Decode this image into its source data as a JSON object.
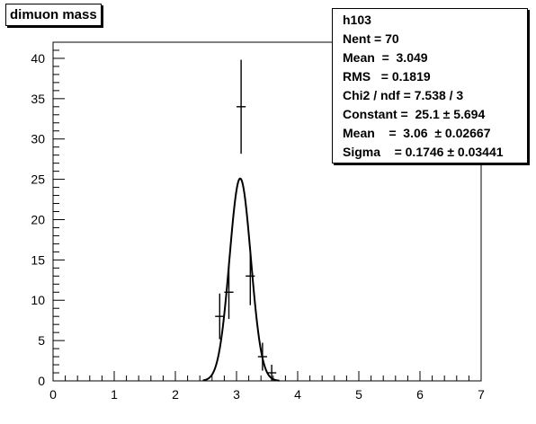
{
  "title": "dimuon mass",
  "stats": {
    "name": "h103",
    "entries": "Nent = 70",
    "mean": "Mean  =  3.049",
    "rms": "RMS   = 0.1819",
    "chi2": "Chi2 / ndf = 7.538 / 3",
    "constant": "Constant =  25.1 ± 5.694",
    "fit_mean": "Mean    =  3.06  ± 0.02667",
    "sigma": "Sigma    = 0.1746 ± 0.03441"
  },
  "chart_data": {
    "type": "scatter",
    "title": "dimuon mass",
    "xlabel": "",
    "ylabel": "",
    "xlim": [
      0,
      7
    ],
    "ylim": [
      0,
      42
    ],
    "xticks": [
      0,
      1,
      2,
      3,
      4,
      5,
      6,
      7
    ],
    "yticks": [
      0,
      5,
      10,
      15,
      20,
      25,
      30,
      35,
      40
    ],
    "grid": false,
    "points": [
      {
        "x": 2.725,
        "y": 8,
        "xerr": 0.075,
        "yerr": 2.83
      },
      {
        "x": 2.875,
        "y": 11,
        "xerr": 0.075,
        "yerr": 3.32
      },
      {
        "x": 3.075,
        "y": 34,
        "xerr": 0.075,
        "yerr": 5.83
      },
      {
        "x": 3.225,
        "y": 13,
        "xerr": 0.075,
        "yerr": 3.61
      },
      {
        "x": 3.425,
        "y": 3,
        "xerr": 0.075,
        "yerr": 1.73
      },
      {
        "x": 3.575,
        "y": 1,
        "xerr": 0.075,
        "yerr": 1.0
      }
    ],
    "fit": {
      "function": "gaus",
      "constant": 25.1,
      "mean": 3.06,
      "sigma": 0.1746
    }
  }
}
